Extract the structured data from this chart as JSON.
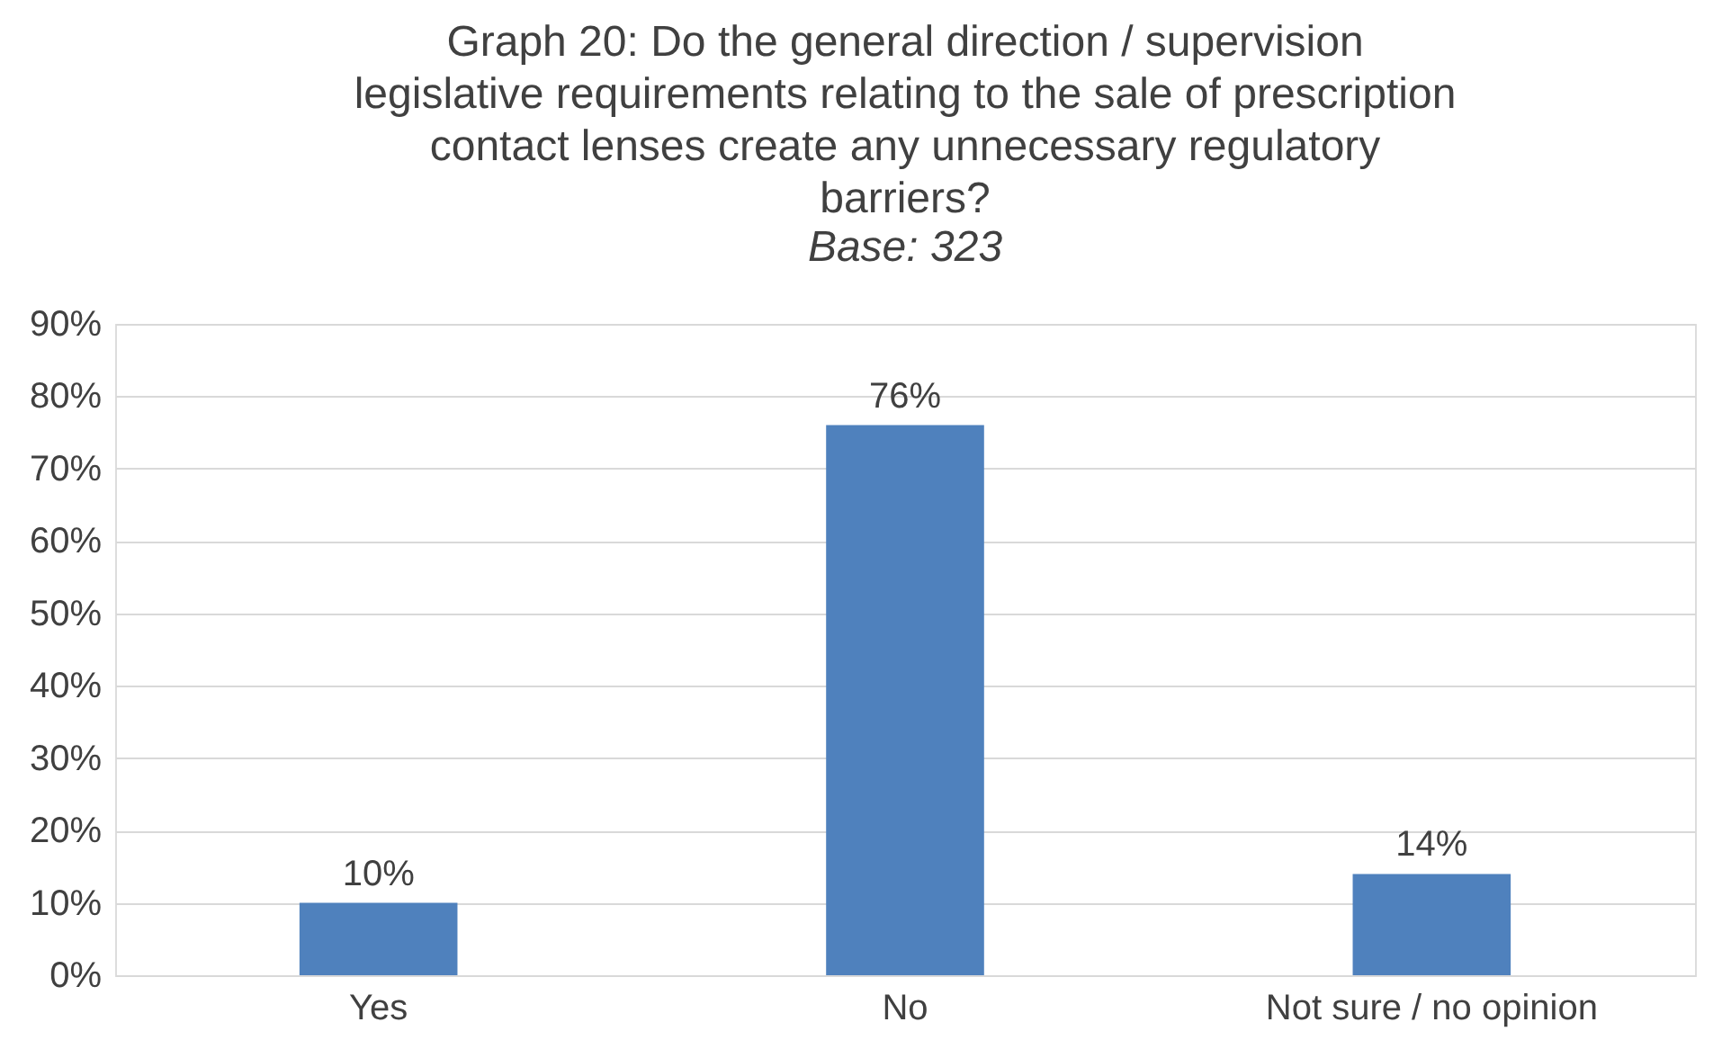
{
  "chart_data": {
    "type": "bar",
    "title": "Graph 20: Do the general direction / supervision\nlegislative requirements relating to the sale of prescription\ncontact lenses create any unnecessary regulatory\nbarriers?",
    "subtitle": "Base: 323",
    "categories": [
      "Yes",
      "No",
      "Not sure / no opinion"
    ],
    "values": [
      10,
      76,
      14
    ],
    "value_labels": [
      "10%",
      "76%",
      "14%"
    ],
    "color": "#4f81bd",
    "ylim": [
      0,
      90
    ],
    "yticks": [
      {
        "value": 0,
        "label": "0%"
      },
      {
        "value": 10,
        "label": "10%"
      },
      {
        "value": 20,
        "label": "20%"
      },
      {
        "value": 30,
        "label": "30%"
      },
      {
        "value": 40,
        "label": "40%"
      },
      {
        "value": 50,
        "label": "50%"
      },
      {
        "value": 60,
        "label": "60%"
      },
      {
        "value": 70,
        "label": "70%"
      },
      {
        "value": 80,
        "label": "80%"
      },
      {
        "value": 90,
        "label": "90%"
      }
    ],
    "grid": "y"
  }
}
